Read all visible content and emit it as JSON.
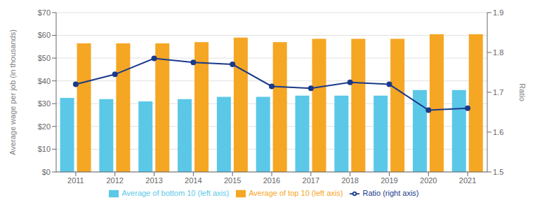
{
  "chart_data": {
    "type": "bar",
    "categories": [
      "2011",
      "2012",
      "2013",
      "2014",
      "2015",
      "2016",
      "2017",
      "2018",
      "2019",
      "2020",
      "2021"
    ],
    "series": [
      {
        "name": "Average of bottom 10 (left axis)",
        "color": "#5bc8e8",
        "values": [
          32.5,
          32.0,
          31.0,
          32.0,
          33.0,
          33.0,
          33.5,
          33.5,
          33.5,
          36.0,
          36.0
        ]
      },
      {
        "name": "Average of top 10 (left axis)",
        "color": "#f5a623",
        "values": [
          56.5,
          56.5,
          56.5,
          57.0,
          59.0,
          57.0,
          58.5,
          58.5,
          58.5,
          60.5,
          60.5
        ]
      },
      {
        "name": "Ratio (right axis)",
        "color": "#1a3a8a",
        "values": [
          1.72,
          1.745,
          1.785,
          1.775,
          1.77,
          1.715,
          1.71,
          1.725,
          1.72,
          1.655,
          1.66
        ],
        "type": "line",
        "axis": "y2",
        "marker": "circle"
      }
    ],
    "ylabel": "Average wage per job (in thousands)",
    "y2label": "Ratio",
    "ylim": [
      0,
      70
    ],
    "yticks": [
      {
        "value": 0,
        "label": "$0"
      },
      {
        "value": 10,
        "label": "$10"
      },
      {
        "value": 20,
        "label": "$20"
      },
      {
        "value": 30,
        "label": "$30"
      },
      {
        "value": 40,
        "label": "$40"
      },
      {
        "value": 50,
        "label": "$50"
      },
      {
        "value": 60,
        "label": "$60"
      },
      {
        "value": 70,
        "label": "$70"
      }
    ],
    "y2lim": [
      1.5,
      1.9
    ],
    "y2ticks": [
      1.5,
      1.6,
      1.7,
      1.8,
      1.9
    ],
    "grid": true,
    "legend": "bottom"
  }
}
